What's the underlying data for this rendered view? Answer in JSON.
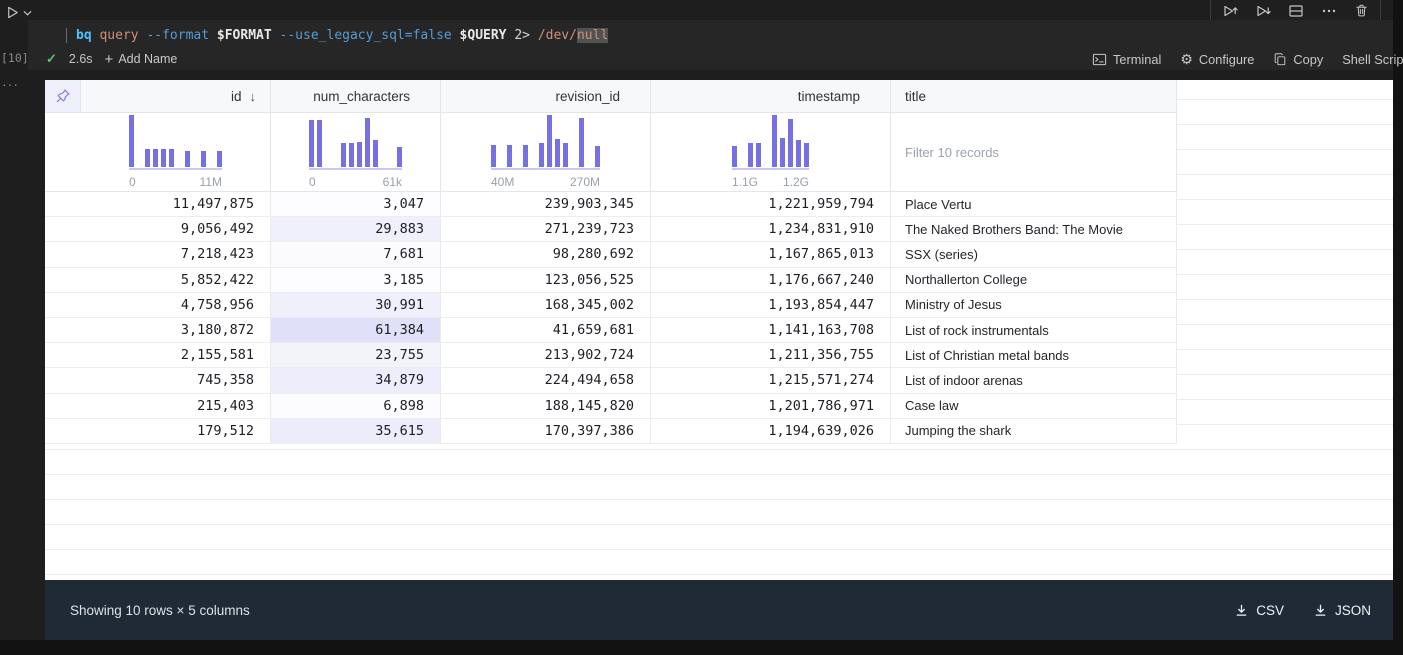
{
  "cell": {
    "execution_count": "[10]",
    "command": [
      {
        "t": "bq",
        "s": "cmd"
      },
      {
        "t": " query",
        "s": "str"
      },
      {
        "t": " --format",
        "s": "flag"
      },
      {
        "t": " $FORMAT",
        "s": "var"
      },
      {
        "t": " --use_legacy_sql=false",
        "s": "flag"
      },
      {
        "t": " $QUERY",
        "s": "var"
      },
      {
        "t": " 2> ",
        "s": "plain"
      },
      {
        "t": "/dev/",
        "s": "str"
      },
      {
        "t": "null",
        "s": "strhl"
      }
    ],
    "duration": "2.6s",
    "add_name": "Add Name",
    "actions": [
      "Terminal",
      "Configure",
      "Copy",
      "Shell Script"
    ],
    "toolbar": [
      "Execute Above Cells",
      "Execute Cell and Below",
      "Split Cell",
      "More Actions",
      "Delete Cell"
    ]
  },
  "table": {
    "columns": [
      {
        "key": "id",
        "label": "id",
        "align": "right",
        "sorted": "desc",
        "histogram": {
          "bars": [
            100,
            0,
            34,
            34,
            34,
            34,
            0,
            30,
            0,
            30,
            0,
            30
          ],
          "min_label": "0",
          "max_label": "11M"
        }
      },
      {
        "key": "num_characters",
        "label": "num_characters",
        "align": "right",
        "heat": true,
        "histogram": {
          "bars": [
            90,
            90,
            0,
            0,
            46,
            46,
            48,
            95,
            52,
            0,
            0,
            38
          ],
          "min_label": "0",
          "max_label": "61k"
        }
      },
      {
        "key": "revision_id",
        "label": "revision_id",
        "align": "right",
        "histogram": {
          "bars": [
            42,
            0,
            42,
            0,
            42,
            0,
            46,
            100,
            54,
            46,
            0,
            95,
            0,
            40
          ],
          "min_label": "40M",
          "max_label": "270M"
        }
      },
      {
        "key": "timestamp",
        "label": "timestamp",
        "align": "right",
        "histogram": {
          "bars": [
            40,
            0,
            46,
            46,
            0,
            100,
            56,
            92,
            52,
            46
          ],
          "min_label": "1.1G",
          "max_label": "1.2G"
        }
      },
      {
        "key": "title",
        "label": "title",
        "align": "left",
        "filter_placeholder": "Filter 10 records"
      }
    ],
    "rows": [
      {
        "id": "11,497,875",
        "num_characters": "3,047",
        "revision_id": "239,903,345",
        "timestamp": "1,221,959,794",
        "title": "Place Vertu"
      },
      {
        "id": "9,056,492",
        "num_characters": "29,883",
        "revision_id": "271,239,723",
        "timestamp": "1,234,831,910",
        "title": "The Naked Brothers Band: The Movie"
      },
      {
        "id": "7,218,423",
        "num_characters": "7,681",
        "revision_id": "98,280,692",
        "timestamp": "1,167,865,013",
        "title": "SSX (series)"
      },
      {
        "id": "5,852,422",
        "num_characters": "3,185",
        "revision_id": "123,056,525",
        "timestamp": "1,176,667,240",
        "title": "Northallerton College"
      },
      {
        "id": "4,758,956",
        "num_characters": "30,991",
        "revision_id": "168,345,002",
        "timestamp": "1,193,854,447",
        "title": "Ministry of Jesus"
      },
      {
        "id": "3,180,872",
        "num_characters": "61,384",
        "revision_id": "41,659,681",
        "timestamp": "1,141,163,708",
        "title": "List of rock instrumentals"
      },
      {
        "id": "2,155,581",
        "num_characters": "23,755",
        "revision_id": "213,902,724",
        "timestamp": "1,211,356,755",
        "title": "List of Christian metal bands"
      },
      {
        "id": "745,358",
        "num_characters": "34,879",
        "revision_id": "224,494,658",
        "timestamp": "1,215,571,274",
        "title": "List of indoor arenas"
      },
      {
        "id": "215,403",
        "num_characters": "6,898",
        "revision_id": "188,145,820",
        "timestamp": "1,201,786,971",
        "title": "Case law"
      },
      {
        "id": "179,512",
        "num_characters": "35,615",
        "revision_id": "170,397,386",
        "timestamp": "1,194,639,026",
        "title": "Jumping the shark"
      }
    ]
  },
  "footer": {
    "summary": "Showing 10 rows × 5 columns",
    "csv_label": "CSV",
    "json_label": "JSON"
  },
  "colors": {
    "accent_purple": "#7670e2",
    "heat_base": "#7670e2",
    "footer_bg": "#202a37",
    "editor_bg": "#1e1e1e"
  }
}
